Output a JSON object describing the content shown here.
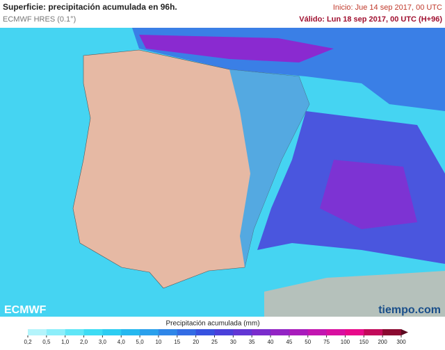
{
  "header": {
    "title": "Superficie: precipitación acumulada en 96h.",
    "model": "ECMWF HRES (0.1°)",
    "start": "Inicio: Jue 14 sep 2017, 00 UTC",
    "valid": "Válido: Lun 18 sep 2017, 00 UTC (H+96)"
  },
  "logos": {
    "left": "ECMWF",
    "right": "tiempo.com"
  },
  "legend": {
    "title": "Precipitación acumulada (mm)",
    "labels": [
      "0,2",
      "0,5",
      "1,0",
      "2,0",
      "3,0",
      "4,0",
      "5,0",
      "10",
      "15",
      "20",
      "25",
      "30",
      "35",
      "40",
      "45",
      "50",
      "75",
      "100",
      "150",
      "200",
      "300"
    ],
    "colors": [
      "#b4f4fb",
      "#8ceefa",
      "#5fe6f7",
      "#3ddcf4",
      "#2ccdf2",
      "#25b8ef",
      "#2aa0ec",
      "#2f86e8",
      "#336ce4",
      "#3752e0",
      "#4a40da",
      "#6236d4",
      "#7a2ccc",
      "#9224c4",
      "#a81cbc",
      "#c216b0",
      "#d810a0",
      "#e80a8a",
      "#c20a5a",
      "#8a0a30"
    ]
  }
}
